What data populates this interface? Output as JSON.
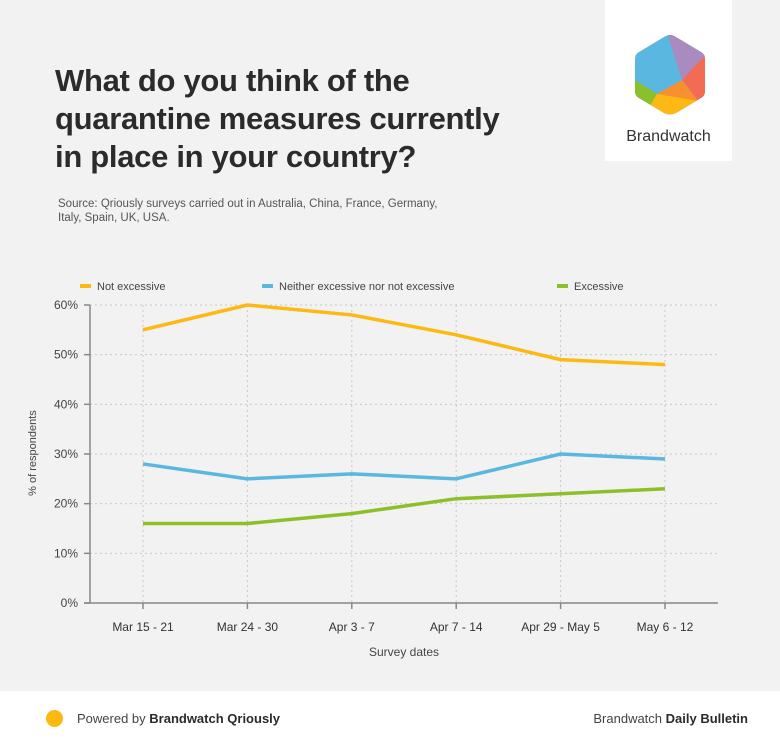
{
  "header": {
    "title_lines": [
      "What do you think of the",
      "quarantine measures currently",
      "in place in your country?"
    ],
    "source_lines": [
      "Source: Qriously surveys carried out in Australia, China, France, Germany,",
      "Italy, Spain, UK, USA."
    ]
  },
  "logo": {
    "icon": "brandwatch-hexagon-logo",
    "text": "Brandwatch"
  },
  "footer": {
    "dot_color": "#fdb913",
    "left_prefix": "Powered by ",
    "left_bold": "Brandwatch Qriously",
    "right_prefix": "Brandwatch ",
    "right_bold": "Daily Bulletin"
  },
  "chart_data": {
    "type": "line",
    "title": "What do you think of the quarantine measures currently in place in your country?",
    "xlabel": "Survey dates",
    "ylabel": "% of respondents",
    "categories": [
      "Mar 15 - 21",
      "Mar 24 - 30",
      "Apr 3 - 7",
      "Apr 7 - 14",
      "Apr 29 - May 5",
      "May 6 - 12"
    ],
    "ylim": [
      0,
      60
    ],
    "yticks": [
      0,
      10,
      20,
      30,
      40,
      50,
      60
    ],
    "ytick_labels": [
      "0%",
      "10%",
      "20%",
      "30%",
      "40%",
      "50%",
      "60%"
    ],
    "grid": true,
    "legend_position": "top",
    "series": [
      {
        "name": "Not excessive",
        "color": "#fdb913",
        "values": [
          55,
          60,
          58,
          54,
          49,
          48
        ]
      },
      {
        "name": "Neither excessive nor not excessive",
        "color": "#5ab7e0",
        "values": [
          28,
          25,
          26,
          25,
          30,
          29
        ]
      },
      {
        "name": "Excessive",
        "color": "#8cc02a",
        "values": [
          16,
          16,
          18,
          21,
          22,
          23
        ]
      }
    ]
  }
}
